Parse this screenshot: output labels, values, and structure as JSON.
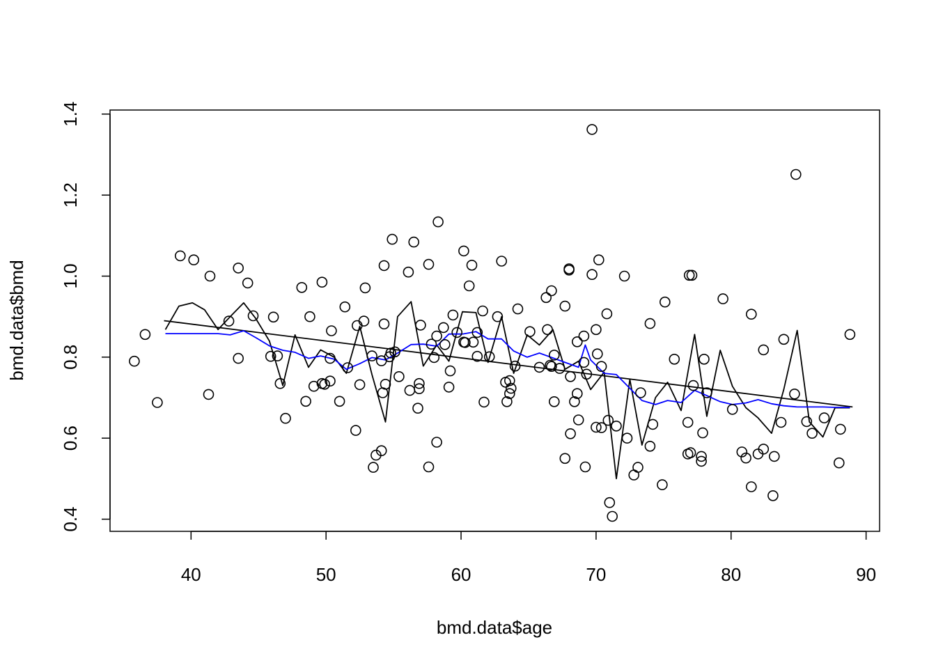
{
  "chart_data": {
    "type": "scatter",
    "title": "",
    "xlabel": "bmd.data$age",
    "ylabel": "bmd.data$bmd",
    "xlim": [
      34,
      91
    ],
    "ylim": [
      0.37,
      1.41
    ],
    "x_ticks": [
      40,
      50,
      60,
      70,
      80,
      90
    ],
    "y_ticks": [
      0.4,
      0.6,
      0.8,
      1.0,
      1.2,
      1.4
    ],
    "x_tick_labels": [
      "40",
      "50",
      "60",
      "70",
      "80",
      "90"
    ],
    "y_tick_labels": [
      "0.4",
      "0.6",
      "0.8",
      "1.0",
      "1.2",
      "1.4"
    ],
    "grid": false,
    "legend": "none",
    "colors": {
      "points": "#000000",
      "regression": "#000000",
      "raw_line": "#000000",
      "smooth_line": "#0000ff"
    },
    "points": [
      [
        35.8,
        0.79
      ],
      [
        36.6,
        0.856
      ],
      [
        37.5,
        0.688
      ],
      [
        39.2,
        1.05
      ],
      [
        40.2,
        1.04
      ],
      [
        41.3,
        0.708
      ],
      [
        41.4,
        1.0
      ],
      [
        42.8,
        0.889
      ],
      [
        43.5,
        1.02
      ],
      [
        43.5,
        0.797
      ],
      [
        44.2,
        0.983
      ],
      [
        44.6,
        0.902
      ],
      [
        45.9,
        0.802
      ],
      [
        46.1,
        0.899
      ],
      [
        46.4,
        0.803
      ],
      [
        46.6,
        0.735
      ],
      [
        47.0,
        0.649
      ],
      [
        48.2,
        0.972
      ],
      [
        48.5,
        0.691
      ],
      [
        48.8,
        0.9
      ],
      [
        49.1,
        0.728
      ],
      [
        49.7,
        0.985
      ],
      [
        49.7,
        0.735
      ],
      [
        49.9,
        0.733
      ],
      [
        50.3,
        0.741
      ],
      [
        50.3,
        0.797
      ],
      [
        50.4,
        0.865
      ],
      [
        51.0,
        0.691
      ],
      [
        51.4,
        0.924
      ],
      [
        51.6,
        0.774
      ],
      [
        52.2,
        0.619
      ],
      [
        52.3,
        0.878
      ],
      [
        52.5,
        0.732
      ],
      [
        52.8,
        0.889
      ],
      [
        52.9,
        0.971
      ],
      [
        53.4,
        0.803
      ],
      [
        53.5,
        0.528
      ],
      [
        53.7,
        0.558
      ],
      [
        54.1,
        0.569
      ],
      [
        54.1,
        0.791
      ],
      [
        54.2,
        0.712
      ],
      [
        54.3,
        0.882
      ],
      [
        54.3,
        1.026
      ],
      [
        54.4,
        0.733
      ],
      [
        54.7,
        0.801
      ],
      [
        54.8,
        0.81
      ],
      [
        54.9,
        1.091
      ],
      [
        55.1,
        0.813
      ],
      [
        55.4,
        0.752
      ],
      [
        56.1,
        1.01
      ],
      [
        56.2,
        0.718
      ],
      [
        56.5,
        1.084
      ],
      [
        56.8,
        0.674
      ],
      [
        56.9,
        0.722
      ],
      [
        56.9,
        0.735
      ],
      [
        57.0,
        0.879
      ],
      [
        57.6,
        0.529
      ],
      [
        57.6,
        1.029
      ],
      [
        57.8,
        0.832
      ],
      [
        58.0,
        0.799
      ],
      [
        58.2,
        0.852
      ],
      [
        58.2,
        0.59
      ],
      [
        58.3,
        1.134
      ],
      [
        58.7,
        0.873
      ],
      [
        58.8,
        0.831
      ],
      [
        59.1,
        0.726
      ],
      [
        59.2,
        0.766
      ],
      [
        59.4,
        0.904
      ],
      [
        59.7,
        0.861
      ],
      [
        60.2,
        1.062
      ],
      [
        60.2,
        0.837
      ],
      [
        60.3,
        0.836
      ],
      [
        60.6,
        0.976
      ],
      [
        60.8,
        1.027
      ],
      [
        60.9,
        0.837
      ],
      [
        61.2,
        0.802
      ],
      [
        61.2,
        0.861
      ],
      [
        61.6,
        0.914
      ],
      [
        61.7,
        0.689
      ],
      [
        62.1,
        0.801
      ],
      [
        62.7,
        0.9
      ],
      [
        63.0,
        1.037
      ],
      [
        63.3,
        0.738
      ],
      [
        63.4,
        0.69
      ],
      [
        63.6,
        0.742
      ],
      [
        63.6,
        0.71
      ],
      [
        63.7,
        0.723
      ],
      [
        64.0,
        0.778
      ],
      [
        64.2,
        0.919
      ],
      [
        65.1,
        0.863
      ],
      [
        65.8,
        0.775
      ],
      [
        66.3,
        0.947
      ],
      [
        66.4,
        0.868
      ],
      [
        66.6,
        0.78
      ],
      [
        66.7,
        0.964
      ],
      [
        66.7,
        0.777
      ],
      [
        66.9,
        0.69
      ],
      [
        66.9,
        0.805
      ],
      [
        67.3,
        0.772
      ],
      [
        67.7,
        0.55
      ],
      [
        67.7,
        0.926
      ],
      [
        68.0,
        1.018
      ],
      [
        68.0,
        1.015
      ],
      [
        68.1,
        0.611
      ],
      [
        68.1,
        0.752
      ],
      [
        68.4,
        0.69
      ],
      [
        68.6,
        0.838
      ],
      [
        68.6,
        0.71
      ],
      [
        68.7,
        0.645
      ],
      [
        69.1,
        0.787
      ],
      [
        69.1,
        0.852
      ],
      [
        69.2,
        0.529
      ],
      [
        69.3,
        0.758
      ],
      [
        69.7,
        1.362
      ],
      [
        69.7,
        1.004
      ],
      [
        70.0,
        0.868
      ],
      [
        70.0,
        0.627
      ],
      [
        70.1,
        0.808
      ],
      [
        70.2,
        1.04
      ],
      [
        70.4,
        0.777
      ],
      [
        70.4,
        0.626
      ],
      [
        70.8,
        0.907
      ],
      [
        70.9,
        0.644
      ],
      [
        71.0,
        0.441
      ],
      [
        71.2,
        0.407
      ],
      [
        71.5,
        0.63
      ],
      [
        72.1,
        1.0
      ],
      [
        72.3,
        0.6
      ],
      [
        72.8,
        0.509
      ],
      [
        73.1,
        0.528
      ],
      [
        73.3,
        0.712
      ],
      [
        74.0,
        0.883
      ],
      [
        74.0,
        0.58
      ],
      [
        74.2,
        0.634
      ],
      [
        74.9,
        0.485
      ],
      [
        75.1,
        0.936
      ],
      [
        75.8,
        0.795
      ],
      [
        76.8,
        0.639
      ],
      [
        76.8,
        0.561
      ],
      [
        76.9,
        1.002
      ],
      [
        77.0,
        0.564
      ],
      [
        77.1,
        1.002
      ],
      [
        77.2,
        0.73
      ],
      [
        77.8,
        0.543
      ],
      [
        77.8,
        0.555
      ],
      [
        77.9,
        0.613
      ],
      [
        78.0,
        0.795
      ],
      [
        78.2,
        0.712
      ],
      [
        79.4,
        0.944
      ],
      [
        80.1,
        0.671
      ],
      [
        80.8,
        0.566
      ],
      [
        81.1,
        0.551
      ],
      [
        81.5,
        0.906
      ],
      [
        81.5,
        0.48
      ],
      [
        82.0,
        0.561
      ],
      [
        82.4,
        0.818
      ],
      [
        82.4,
        0.573
      ],
      [
        83.1,
        0.458
      ],
      [
        83.2,
        0.555
      ],
      [
        83.7,
        0.639
      ],
      [
        83.9,
        0.844
      ],
      [
        84.7,
        0.709
      ],
      [
        84.8,
        1.251
      ],
      [
        85.6,
        0.641
      ],
      [
        86.0,
        0.612
      ],
      [
        86.9,
        0.65
      ],
      [
        88.0,
        0.539
      ],
      [
        88.1,
        0.622
      ],
      [
        88.8,
        0.856
      ]
    ],
    "series": [
      {
        "kind": "line",
        "color": "#000000",
        "x": [
          38.0,
          89.0
        ],
        "y": [
          0.89,
          0.677
        ]
      },
      {
        "kind": "line",
        "color": "#000000",
        "x": [
          38.1,
          39.1,
          40.1,
          41.0,
          42.0,
          42.9,
          43.9,
          44.8,
          45.8,
          46.8,
          47.7,
          48.7,
          49.6,
          50.6,
          51.5,
          52.5,
          53.4,
          54.4,
          55.3,
          56.3,
          57.2,
          58.2,
          59.1,
          60.1,
          61.1,
          62.0,
          63.0,
          63.9,
          64.9,
          65.8,
          66.8,
          67.7,
          68.7,
          69.6,
          70.6,
          71.5,
          72.5,
          73.4,
          74.4,
          75.3,
          76.3,
          77.3,
          78.2,
          79.2,
          80.1,
          81.1,
          82.0,
          83.0,
          83.9,
          84.9,
          85.8,
          86.8,
          87.7,
          88.8
        ],
        "y": [
          0.868,
          0.926,
          0.934,
          0.917,
          0.868,
          0.9,
          0.934,
          0.895,
          0.84,
          0.73,
          0.855,
          0.775,
          0.818,
          0.8,
          0.76,
          0.876,
          0.757,
          0.64,
          0.9,
          0.937,
          0.778,
          0.83,
          0.79,
          0.912,
          0.91,
          0.787,
          0.9,
          0.76,
          0.855,
          0.83,
          0.868,
          0.77,
          0.79,
          0.72,
          0.763,
          0.5,
          0.745,
          0.583,
          0.7,
          0.738,
          0.668,
          0.856,
          0.654,
          0.817,
          0.728,
          0.675,
          0.65,
          0.612,
          0.72,
          0.866,
          0.64,
          0.603,
          0.675,
          0.675
        ]
      },
      {
        "kind": "line",
        "color": "#0000ff",
        "x": [
          38.1,
          39.1,
          40.1,
          41.0,
          42.0,
          42.9,
          43.9,
          44.8,
          45.8,
          46.8,
          47.7,
          48.7,
          49.6,
          50.6,
          51.5,
          52.5,
          53.4,
          54.4,
          55.3,
          56.3,
          57.2,
          58.2,
          59.1,
          60.1,
          61.1,
          62.0,
          63.0,
          63.9,
          64.9,
          65.8,
          66.8,
          67.7,
          68.7,
          69.2,
          69.6,
          70.6,
          71.5,
          72.5,
          73.4,
          74.4,
          75.3,
          76.3,
          77.3,
          78.2,
          79.2,
          80.1,
          81.1,
          82.0,
          83.0,
          83.9,
          84.9,
          85.8,
          86.8,
          87.7,
          88.8
        ],
        "y": [
          0.858,
          0.858,
          0.858,
          0.858,
          0.858,
          0.855,
          0.865,
          0.848,
          0.828,
          0.817,
          0.812,
          0.797,
          0.803,
          0.795,
          0.77,
          0.784,
          0.799,
          0.793,
          0.81,
          0.831,
          0.832,
          0.827,
          0.857,
          0.857,
          0.863,
          0.845,
          0.845,
          0.815,
          0.8,
          0.81,
          0.798,
          0.787,
          0.775,
          0.83,
          0.793,
          0.76,
          0.757,
          0.723,
          0.693,
          0.683,
          0.693,
          0.688,
          0.718,
          0.705,
          0.69,
          0.683,
          0.687,
          0.695,
          0.685,
          0.68,
          0.677,
          0.677,
          0.677,
          0.676,
          0.676
        ]
      }
    ]
  }
}
